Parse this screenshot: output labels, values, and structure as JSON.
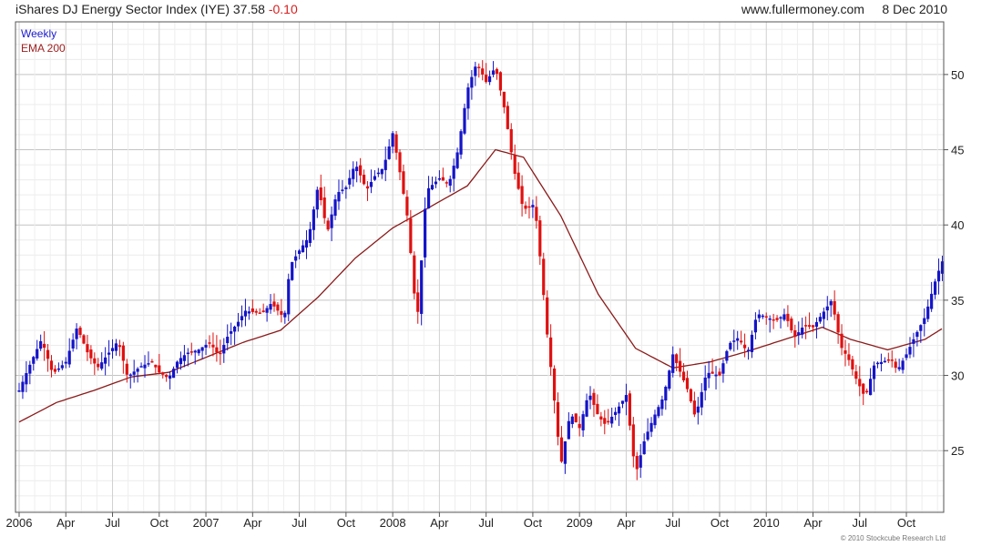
{
  "header": {
    "title": "iShares DJ Energy Sector Index (IYE)",
    "last_price": "37.58",
    "change": "-0.10",
    "site": "www.fullermoney.com",
    "date": "8 Dec 2010"
  },
  "footer": {
    "copyright": "© 2010 Stockcube Research Ltd"
  },
  "colors": {
    "up": "#1414c8",
    "down": "#e01010",
    "ema": "#8b1a1a",
    "grid": "#d4d4d4",
    "frame": "#555555"
  },
  "chart_data": {
    "type": "candlestick",
    "legend": [
      "Weekly",
      "EMA 200"
    ],
    "x_tick_labels": [
      "2006",
      "Apr",
      "Jul",
      "Oct",
      "2007",
      "Apr",
      "Jul",
      "Oct",
      "2008",
      "Apr",
      "Jul",
      "Oct",
      "2009",
      "Apr",
      "Jul",
      "Oct",
      "2010",
      "Apr",
      "Jul",
      "Oct"
    ],
    "y_tick_labels": [
      25,
      30,
      35,
      40,
      45,
      50
    ],
    "ylim": [
      20.9,
      53.5
    ],
    "x_start": 2006.0,
    "x_end": 2010.94,
    "close_series": [
      [
        2006.0,
        29
      ],
      [
        2006.05,
        30.5
      ],
      [
        2006.12,
        32.4
      ],
      [
        2006.18,
        30.1
      ],
      [
        2006.25,
        30.9
      ],
      [
        2006.31,
        33.2
      ],
      [
        2006.37,
        31.4
      ],
      [
        2006.42,
        30.5
      ],
      [
        2006.48,
        31.5
      ],
      [
        2006.53,
        32.3
      ],
      [
        2006.58,
        29.9
      ],
      [
        2006.65,
        30.6
      ],
      [
        2006.71,
        30.9
      ],
      [
        2006.75,
        30.2
      ],
      [
        2006.8,
        29.8
      ],
      [
        2006.85,
        31
      ],
      [
        2006.9,
        31.5
      ],
      [
        2006.96,
        31.7
      ],
      [
        2007.02,
        32.2
      ],
      [
        2007.07,
        31.3
      ],
      [
        2007.12,
        32.7
      ],
      [
        2007.17,
        33.5
      ],
      [
        2007.21,
        34.3
      ],
      [
        2007.3,
        34.1
      ],
      [
        2007.35,
        34.8
      ],
      [
        2007.42,
        33.8
      ],
      [
        2007.45,
        37.3
      ],
      [
        2007.5,
        38.3
      ],
      [
        2007.55,
        39.2
      ],
      [
        2007.6,
        42.6
      ],
      [
        2007.65,
        39.5
      ],
      [
        2007.7,
        42.1
      ],
      [
        2007.75,
        42.5
      ],
      [
        2007.8,
        44.1
      ],
      [
        2007.86,
        42.3
      ],
      [
        2007.9,
        43.2
      ],
      [
        2007.95,
        43.8
      ],
      [
        2008.0,
        46.1
      ],
      [
        2008.04,
        43.4
      ],
      [
        2008.08,
        40.4
      ],
      [
        2008.13,
        33.4
      ],
      [
        2008.18,
        42.3
      ],
      [
        2008.25,
        43.1
      ],
      [
        2008.3,
        42.7
      ],
      [
        2008.35,
        45
      ],
      [
        2008.4,
        49
      ],
      [
        2008.45,
        50.8
      ],
      [
        2008.5,
        49.5
      ],
      [
        2008.55,
        50.5
      ],
      [
        2008.6,
        47.6
      ],
      [
        2008.65,
        43.6
      ],
      [
        2008.7,
        41
      ],
      [
        2008.76,
        41.4
      ],
      [
        2008.8,
        36.5
      ],
      [
        2008.82,
        33.5
      ],
      [
        2008.86,
        29
      ],
      [
        2008.9,
        24
      ],
      [
        2008.95,
        27.5
      ],
      [
        2009.0,
        26.5
      ],
      [
        2009.05,
        28.9
      ],
      [
        2009.1,
        27.3
      ],
      [
        2009.14,
        26.7
      ],
      [
        2009.2,
        27.7
      ],
      [
        2009.25,
        28.7
      ],
      [
        2009.3,
        23.4
      ],
      [
        2009.35,
        25.8
      ],
      [
        2009.4,
        27.3
      ],
      [
        2009.45,
        28.6
      ],
      [
        2009.5,
        31.4
      ],
      [
        2009.58,
        29
      ],
      [
        2009.62,
        27.2
      ],
      [
        2009.68,
        30.2
      ],
      [
        2009.75,
        30
      ],
      [
        2009.8,
        32.1
      ],
      [
        2009.85,
        32.5
      ],
      [
        2009.9,
        31.5
      ],
      [
        2009.95,
        34.1
      ],
      [
        2010.0,
        33.9
      ],
      [
        2010.05,
        33.6
      ],
      [
        2010.1,
        34.1
      ],
      [
        2010.15,
        32.5
      ],
      [
        2010.2,
        33.3
      ],
      [
        2010.25,
        33.2
      ],
      [
        2010.3,
        34.1
      ],
      [
        2010.35,
        35
      ],
      [
        2010.4,
        31.9
      ],
      [
        2010.44,
        31.1
      ],
      [
        2010.48,
        29.8
      ],
      [
        2010.53,
        28.5
      ],
      [
        2010.58,
        30.8
      ],
      [
        2010.62,
        30.9
      ],
      [
        2010.67,
        31.1
      ],
      [
        2010.7,
        30.3
      ],
      [
        2010.75,
        31.4
      ],
      [
        2010.8,
        32.7
      ],
      [
        2010.85,
        33.9
      ],
      [
        2010.9,
        36.1
      ],
      [
        2010.94,
        37.58
      ]
    ],
    "ema_200": [
      [
        2006.0,
        26.9
      ],
      [
        2006.2,
        28.2
      ],
      [
        2006.4,
        29
      ],
      [
        2006.6,
        29.9
      ],
      [
        2006.8,
        30.2
      ],
      [
        2007.0,
        31.2
      ],
      [
        2007.2,
        32.2
      ],
      [
        2007.4,
        33
      ],
      [
        2007.6,
        35.2
      ],
      [
        2007.8,
        37.8
      ],
      [
        2008.0,
        39.8
      ],
      [
        2008.2,
        41.2
      ],
      [
        2008.4,
        42.6
      ],
      [
        2008.55,
        45
      ],
      [
        2008.7,
        44.5
      ],
      [
        2008.9,
        40.6
      ],
      [
        2009.1,
        35.4
      ],
      [
        2009.3,
        31.8
      ],
      [
        2009.5,
        30.5
      ],
      [
        2009.7,
        30.9
      ],
      [
        2009.9,
        31.6
      ],
      [
        2010.1,
        32.4
      ],
      [
        2010.3,
        33.2
      ],
      [
        2010.45,
        32.4
      ],
      [
        2010.65,
        31.7
      ],
      [
        2010.85,
        32.4
      ],
      [
        2010.94,
        33.1
      ]
    ]
  }
}
